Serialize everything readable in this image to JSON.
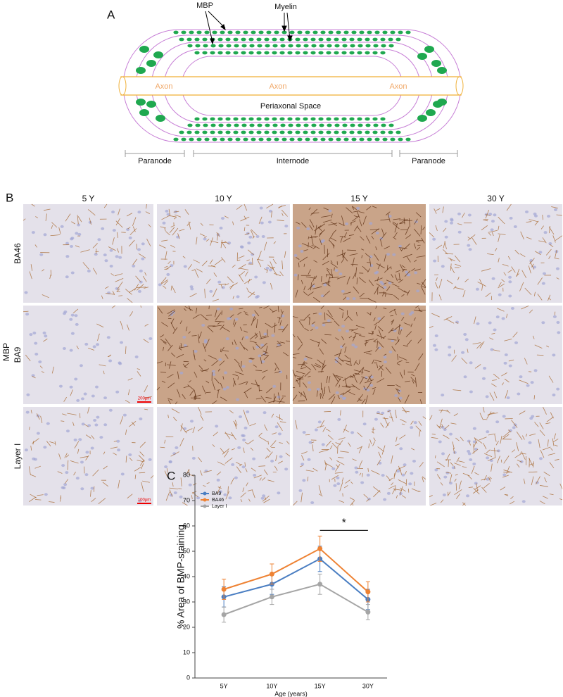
{
  "panel_a": {
    "label": "A",
    "mbp": "MBP",
    "myelin": "Myelin",
    "axon_left": "Axon",
    "axon_mid": "Axon",
    "axon_right": "Axon",
    "periaxonal": "Periaxonal Space",
    "paranode_left": "Paranode",
    "internode": "Internode",
    "paranode_right": "Paranode"
  },
  "panel_b": {
    "label": "B",
    "stain": "MBP",
    "columns": [
      "5 Y",
      "10 Y",
      "15 Y",
      "30 Y"
    ],
    "rows": [
      "BA46",
      "BA9",
      "Layer I"
    ],
    "scale_bar_ba9": "200μm",
    "scale_bar_layer1": "100μm"
  },
  "chart_data": {
    "type": "line",
    "panel_label": "C",
    "y_label": "% Area of BMP-staining",
    "x_label": "Age (years)",
    "categories": [
      "5Y",
      "10Y",
      "15Y",
      "30Y"
    ],
    "series": [
      {
        "name": "BA9",
        "color": "#4a7ec2",
        "values": [
          32,
          37,
          47,
          31
        ],
        "errors": [
          4,
          4,
          5,
          4
        ]
      },
      {
        "name": "BA46",
        "color": "#ee8233",
        "values": [
          35,
          41,
          51,
          34
        ],
        "errors": [
          4,
          4,
          5,
          4
        ]
      },
      {
        "name": "Layer I",
        "color": "#a5a5a5",
        "values": [
          25,
          32,
          37,
          26
        ],
        "errors": [
          3,
          3,
          4,
          3
        ]
      }
    ],
    "ylim": [
      0,
      80
    ],
    "yticks": [
      0,
      10,
      20,
      30,
      40,
      50,
      60,
      70,
      80
    ],
    "annotation": "*",
    "legend": "upper left"
  }
}
